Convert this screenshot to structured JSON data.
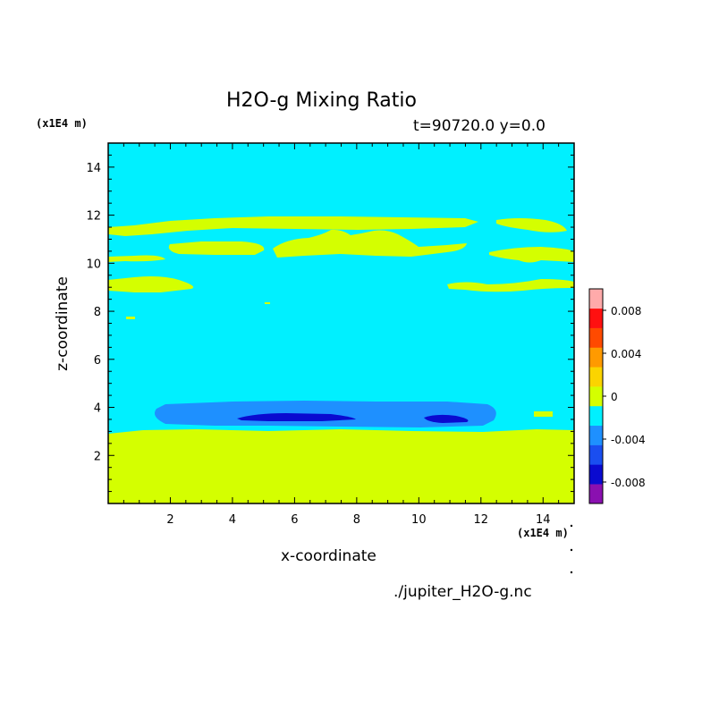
{
  "chart_data": {
    "type": "heatmap",
    "title": "H2O-g Mixing Ratio",
    "subtitle": "t=90720.0 y=0.0",
    "xlabel": "x-coordinate",
    "ylabel": "z-coordinate",
    "x_unit": "(x1E4 m)",
    "y_unit": "(x1E4 m)",
    "xlim": [
      0,
      15
    ],
    "ylim": [
      0,
      15
    ],
    "xticks": [
      2,
      4,
      6,
      8,
      10,
      12,
      14
    ],
    "yticks": [
      2,
      4,
      6,
      8,
      10,
      12,
      14
    ],
    "colorbar": {
      "levels": [
        -0.01,
        -0.008,
        -0.006,
        -0.004,
        -0.002,
        0,
        0.002,
        0.004,
        0.006,
        0.008,
        0.01
      ],
      "colors": [
        "#8a10b0",
        "#0a0ad0",
        "#1a4ef0",
        "#1e90ff",
        "#00f0ff",
        "#d4ff00",
        "#fbd400",
        "#ff9a00",
        "#ff4a00",
        "#ff1010",
        "#ffaaaa"
      ],
      "tick_labels": [
        "0.008",
        "0.004",
        "0",
        "-0.004",
        "-0.008"
      ],
      "tick_values": [
        0.008,
        0.004,
        0,
        -0.004,
        -0.008
      ]
    },
    "background_level": "-0.002 to 0",
    "regions": [
      {
        "name": "near-surface moist layer",
        "level": "0 to 0.002",
        "x_range": [
          0,
          15
        ],
        "z_range": [
          0,
          3.0
        ]
      },
      {
        "name": "depleted band",
        "level": "-0.004 to -0.002",
        "x_range": [
          1.5,
          12.5
        ],
        "z_range": [
          3.1,
          4.3
        ]
      },
      {
        "name": "strong depletion west",
        "level": "-0.006 to -0.004",
        "x_range": [
          4.2,
          7.9
        ],
        "z_range": [
          3.4,
          3.8
        ]
      },
      {
        "name": "strong depletion east",
        "level": "-0.006 to -0.004",
        "x_range": [
          10.2,
          11.5
        ],
        "z_range": [
          3.4,
          3.7
        ]
      },
      {
        "name": "upper moist layer",
        "level": "0 to 0.002",
        "x_range": [
          0,
          15
        ],
        "z_range": [
          8.9,
          12.0
        ]
      }
    ]
  },
  "labels": {
    "title": "H2O-g Mixing Ratio",
    "subtitle": "t=90720.0 y=0.0",
    "yunit": "(x1E4 m)",
    "xunit": "(x1E4 m)",
    "xlabel": "x-coordinate",
    "ylabel": "z-coordinate",
    "filename": "./jupiter_H2O-g.nc"
  },
  "colors": {
    "background_field": "#00f0ff",
    "moist": "#d4ff00",
    "depleted": "#1e90ff",
    "strongly_depleted": "#0a0ad0"
  }
}
